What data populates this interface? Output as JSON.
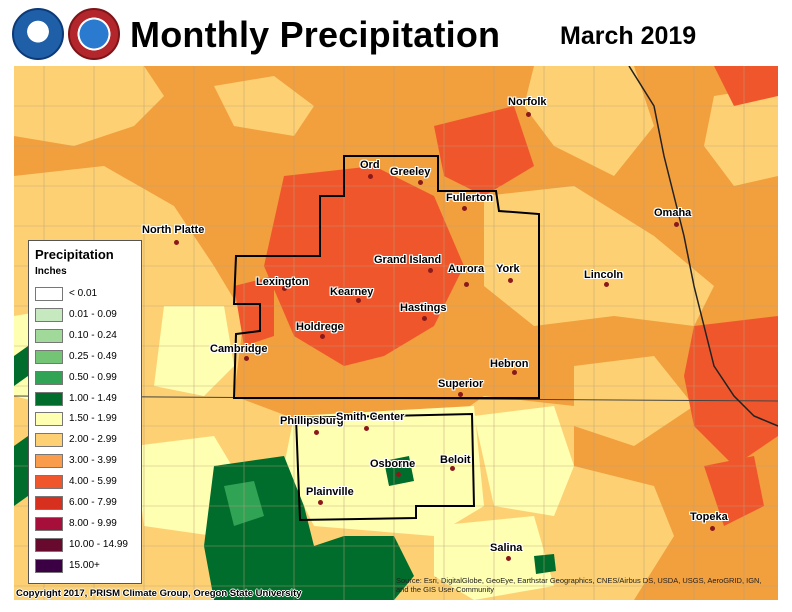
{
  "header": {
    "title": "Monthly Precipitation",
    "date": "March 2019",
    "logos": [
      "noaa-logo",
      "national-weather-service-logo"
    ]
  },
  "legend": {
    "title": "Precipitation",
    "units": "Inches",
    "items": [
      {
        "label": "< 0.01",
        "color": "#ffffff"
      },
      {
        "label": "0.01 - 0.09",
        "color": "#c7e9c0"
      },
      {
        "label": "0.10 - 0.24",
        "color": "#a1d99b"
      },
      {
        "label": "0.25 - 0.49",
        "color": "#74c476"
      },
      {
        "label": "0.50 - 0.99",
        "color": "#31a354"
      },
      {
        "label": "1.00 - 1.49",
        "color": "#006d2c"
      },
      {
        "label": "1.50 - 1.99",
        "color": "#ffffb2"
      },
      {
        "label": "2.00 - 2.99",
        "color": "#fdd173"
      },
      {
        "label": "3.00 - 3.99",
        "color": "#f99d4c"
      },
      {
        "label": "4.00 - 5.99",
        "color": "#f0562c"
      },
      {
        "label": "6.00 - 7.99",
        "color": "#d7301f"
      },
      {
        "label": "8.00 - 9.99",
        "color": "#a50f3a"
      },
      {
        "label": "10.00 - 14.99",
        "color": "#670a2e"
      },
      {
        "label": "15.00+",
        "color": "#3b0044"
      }
    ]
  },
  "cities": [
    {
      "name": "Norfolk"
    },
    {
      "name": "Ord"
    },
    {
      "name": "Greeley"
    },
    {
      "name": "Fullerton"
    },
    {
      "name": "North Platte"
    },
    {
      "name": "Omaha"
    },
    {
      "name": "Grand Island"
    },
    {
      "name": "Aurora"
    },
    {
      "name": "York"
    },
    {
      "name": "Lexington"
    },
    {
      "name": "Kearney"
    },
    {
      "name": "Lincoln"
    },
    {
      "name": "Hastings"
    },
    {
      "name": "Holdrege"
    },
    {
      "name": "Cambridge"
    },
    {
      "name": "Hebron"
    },
    {
      "name": "Superior"
    },
    {
      "name": "Phillipsburg"
    },
    {
      "name": "Smith Center"
    },
    {
      "name": "Osborne"
    },
    {
      "name": "Beloit"
    },
    {
      "name": "Plainville"
    },
    {
      "name": "Topeka"
    },
    {
      "name": "Salina"
    }
  ],
  "credit": "Copyright 2017, PRISM Climate Group, Oregon State University",
  "source": "Source: Esri, DigitalGlobe, GeoEye, Earthstar Geographics, CNES/Airbus DS, USDA, USGS, AeroGRID, IGN, and the GIS User Community"
}
